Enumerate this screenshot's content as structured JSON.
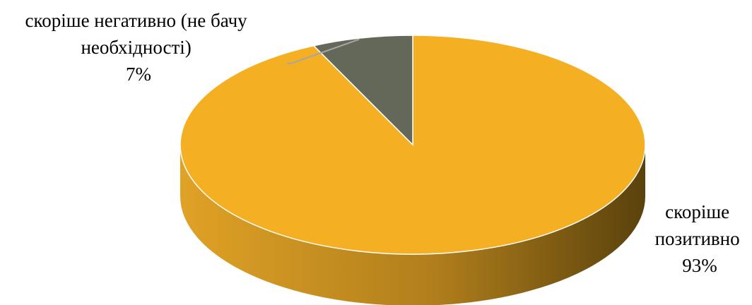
{
  "chart_data": {
    "type": "pie",
    "style": "3d",
    "slices": [
      {
        "label_lines": [
          "скоріше",
          "позитивно"
        ],
        "percent_label": "93%",
        "value": 93,
        "color": "#F4AF22",
        "side_color_light": "#E0A226",
        "side_color_dark": "#5A420C"
      },
      {
        "label_lines": [
          "скоріше негативно (не бачу",
          "необхідності)"
        ],
        "percent_label": "7%",
        "value": 7,
        "color": "#636859",
        "side_color_light": "#636859",
        "side_color_dark": "#3F4236"
      }
    ],
    "legend": "none",
    "grid": false
  }
}
